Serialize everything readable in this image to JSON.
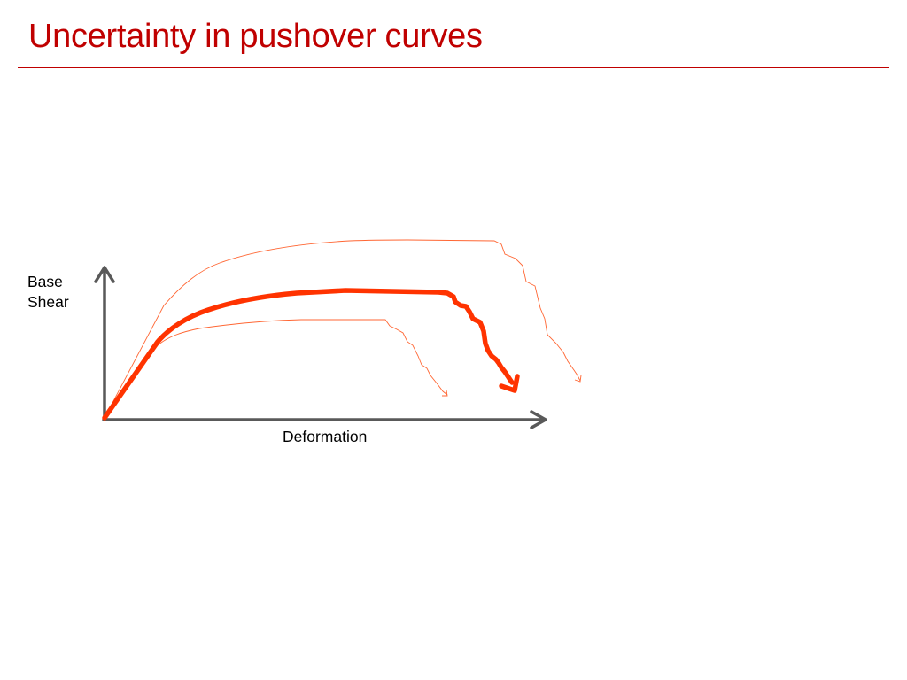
{
  "slide": {
    "title": "Uncertainty in pushover curves",
    "colors": {
      "title": "#c00000",
      "rule": "#c00000",
      "axis": "#595959",
      "main_curve": "#ff3300",
      "bound_curves": "#ff6633"
    }
  },
  "diagram": {
    "y_axis_label_line1": "Base",
    "y_axis_label_line2": "Shear",
    "x_axis_label": "Deformation",
    "curves": [
      {
        "role": "upper bound",
        "style": "thin"
      },
      {
        "role": "mean",
        "style": "thick"
      },
      {
        "role": "lower bound",
        "style": "thin"
      }
    ]
  }
}
